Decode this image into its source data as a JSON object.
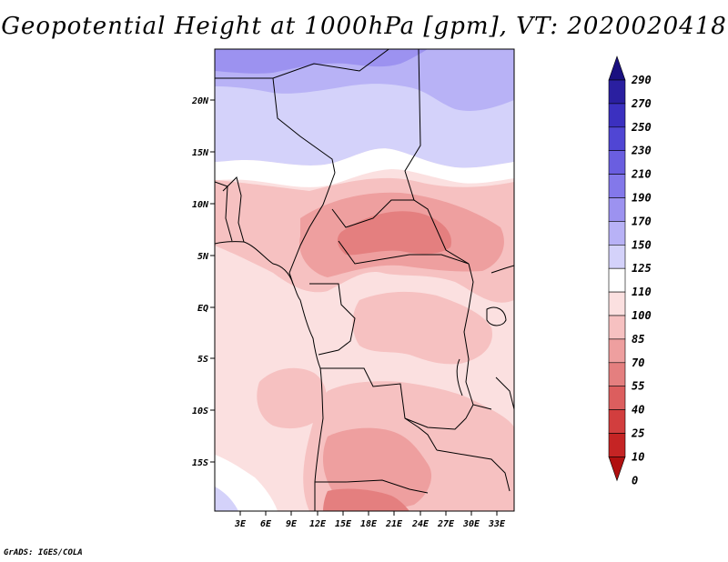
{
  "title": "Geopotential Height at 1000hPa [gpm], VT: 2020020418",
  "credit": "GrADS: IGES/COLA",
  "axes": {
    "lat_labels": [
      "20N",
      "15N",
      "10N",
      "5N",
      "EQ",
      "5S",
      "10S",
      "15S"
    ],
    "lon_labels": [
      "3E",
      "6E",
      "9E",
      "12E",
      "15E",
      "18E",
      "21E",
      "24E",
      "27E",
      "30E",
      "33E"
    ]
  },
  "colorbar": {
    "levels": [
      "290",
      "270",
      "250",
      "230",
      "210",
      "190",
      "170",
      "150",
      "125",
      "110",
      "100",
      "85",
      "70",
      "55",
      "40",
      "25",
      "10",
      "0"
    ],
    "colors_top_to_bottom": [
      "#1a1080",
      "#2a1fa0",
      "#3b30c0",
      "#5046d4",
      "#6a5ee0",
      "#8378ea",
      "#9c92f0",
      "#b8b2f6",
      "#d4d2fa",
      "#ffffff",
      "#fbe0e0",
      "#f6c1c1",
      "#ee9f9f",
      "#e47f7f",
      "#dc5e5e",
      "#d23e3e",
      "#c52424",
      "#b01010"
    ]
  },
  "map_fields": [
    {
      "name": "field-north-blue",
      "color": "#d4d2fa"
    },
    {
      "name": "field-north-mid",
      "color": "#b8b2f6"
    },
    {
      "name": "field-north-deep",
      "color": "#9c92f0"
    },
    {
      "name": "field-white-band",
      "color": "#ffffff"
    },
    {
      "name": "field-pink-base",
      "color": "#fbe0e0"
    },
    {
      "name": "field-pink-mid",
      "color": "#f6c1c1"
    },
    {
      "name": "field-red-deep",
      "color": "#ee9f9f"
    },
    {
      "name": "field-red-dark",
      "color": "#e47f7f"
    }
  ]
}
